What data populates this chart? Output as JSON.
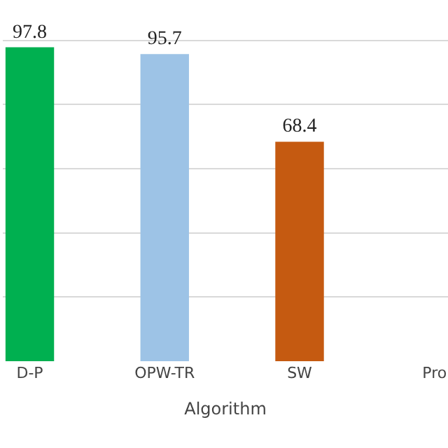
{
  "chart_data": {
    "type": "bar",
    "xlabel": "Algorithm",
    "categories": [
      "D-P",
      "OPW-TR",
      "SW",
      "Pro"
    ],
    "values": [
      97.8,
      95.7,
      68.4,
      null
    ],
    "colors": [
      "#00b050",
      "#9dc3e6",
      "#c55a11",
      "#7f7f7f"
    ],
    "data_labels": true,
    "grid": "y",
    "tick_labels": "x"
  }
}
